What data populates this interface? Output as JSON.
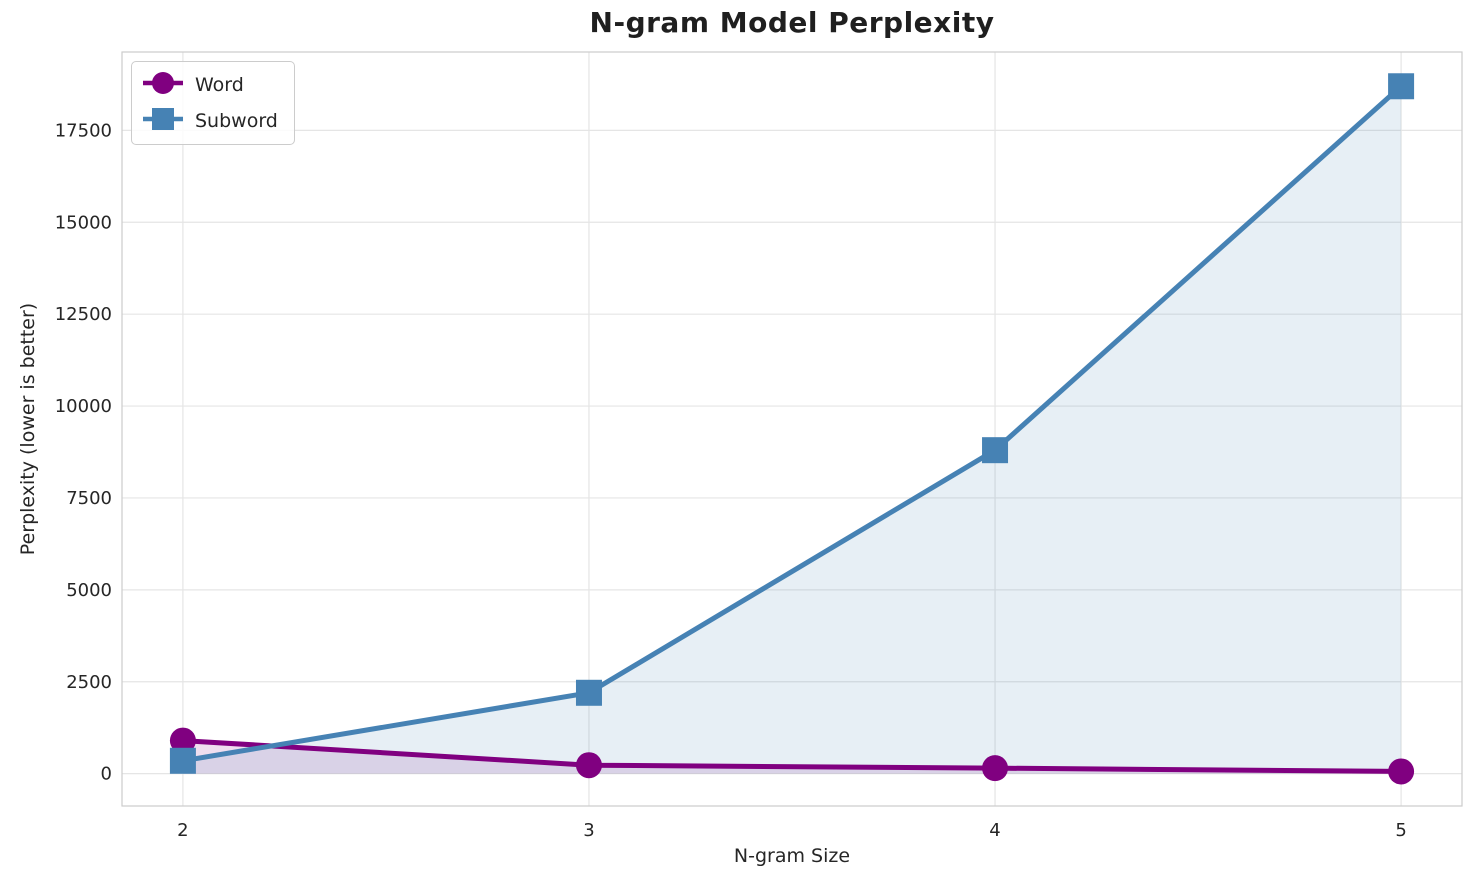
{
  "chart_data": {
    "type": "line",
    "title": "N-gram Model Perplexity",
    "xlabel": "N-gram Size",
    "ylabel": "Perplexity (lower is better)",
    "x": [
      2,
      3,
      4,
      5
    ],
    "series": [
      {
        "name": "Word",
        "color": "#800080",
        "marker": "circle",
        "values": [
          900,
          230,
          150,
          60
        ]
      },
      {
        "name": "Subword",
        "color": "#4682B4",
        "marker": "square",
        "values": [
          350,
          2200,
          8800,
          18700
        ]
      }
    ],
    "xticks": [
      2,
      3,
      4,
      5
    ],
    "yticks": [
      0,
      2500,
      5000,
      7500,
      10000,
      12500,
      15000,
      17500
    ],
    "xlim": [
      1.85,
      5.15
    ],
    "ylim": [
      -880,
      19632
    ],
    "grid": true,
    "legend_position": "upper left",
    "fill_to_zero": true,
    "fill_alpha": 0.13,
    "background_color": "#ffffff",
    "grid_color": "#e5e5e5",
    "spine_color": "#cccccc",
    "text_color": "#262626",
    "line_width": 5,
    "marker_size": 26
  }
}
